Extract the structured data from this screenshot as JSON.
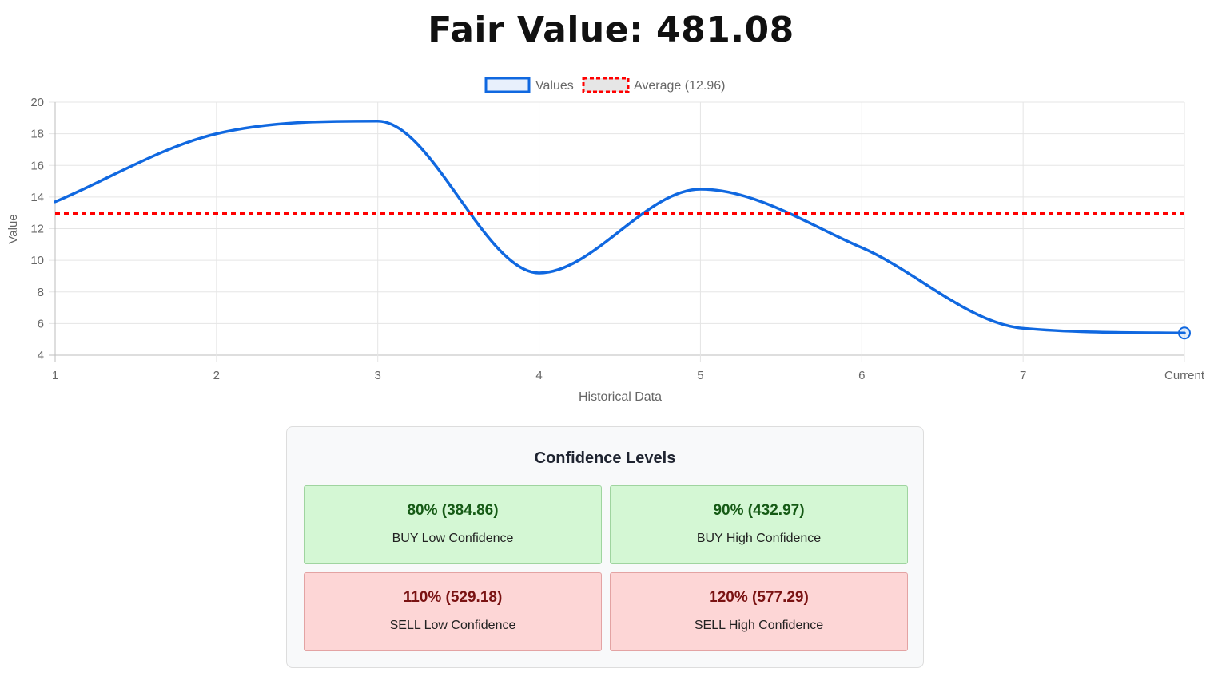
{
  "header": {
    "title": "Fair Value: 481.08"
  },
  "chart_data": {
    "type": "line",
    "x": [
      "1",
      "2",
      "3",
      "4",
      "5",
      "6",
      "7",
      "Current"
    ],
    "series": [
      {
        "name": "Values",
        "values": [
          13.7,
          18.0,
          18.8,
          9.2,
          14.5,
          10.8,
          5.7,
          5.4
        ],
        "color": "#1068e0",
        "style": "solid"
      },
      {
        "name": "Average (12.96)",
        "values": [
          12.96,
          12.96,
          12.96,
          12.96,
          12.96,
          12.96,
          12.96,
          12.96
        ],
        "color": "#ff0000",
        "style": "dashed"
      }
    ],
    "xlabel": "Historical Data",
    "ylabel": "Value",
    "ylim": [
      4,
      20
    ],
    "yticks": [
      4,
      6,
      8,
      10,
      12,
      14,
      16,
      18,
      20
    ],
    "grid": true,
    "legend": "top-center",
    "colors": {
      "grid": "#e5e5e5",
      "axis": "#bdbdbd",
      "tick_text": "#666666"
    }
  },
  "confidence": {
    "title": "Confidence Levels",
    "levels": [
      {
        "value": "80% (384.86)",
        "label": "BUY Low Confidence",
        "type": "buy"
      },
      {
        "value": "90% (432.97)",
        "label": "BUY High Confidence",
        "type": "buy"
      },
      {
        "value": "110% (529.18)",
        "label": "SELL Low Confidence",
        "type": "sell"
      },
      {
        "value": "120% (577.29)",
        "label": "SELL High Confidence",
        "type": "sell"
      }
    ],
    "colors": {
      "buy_bg": "#d4f7d4",
      "buy_text": "#155a15",
      "sell_bg": "#fdd6d6",
      "sell_text": "#7a1212"
    }
  }
}
